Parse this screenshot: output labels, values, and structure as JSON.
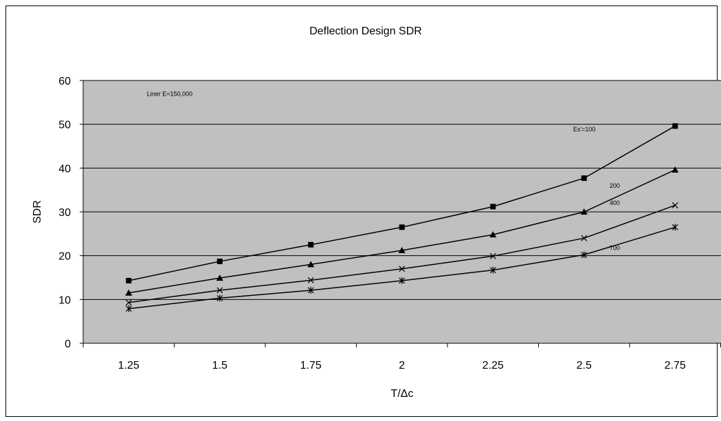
{
  "chart_data": {
    "type": "line",
    "title": "Deflection Design SDR",
    "xlabel": "T/Δc",
    "ylabel": "SDR",
    "categories": [
      "1.25",
      "1.5",
      "1.75",
      "2",
      "2.25",
      "2.5",
      "2.75"
    ],
    "ylim": [
      0,
      60
    ],
    "yticks": [
      0,
      10,
      20,
      30,
      40,
      50,
      60
    ],
    "grid": "horizontal",
    "plot_background": "#c0c0c0",
    "annotations": [
      {
        "text": "Liner E=150,000",
        "x": 1.3,
        "y": 56.5
      },
      {
        "text": "Es'=100",
        "x": 2.47,
        "y": 48.4
      },
      {
        "text": "200",
        "x": 2.57,
        "y": 35.5
      },
      {
        "text": "400",
        "x": 2.57,
        "y": 31.6
      },
      {
        "text": "700",
        "x": 2.57,
        "y": 21.3
      }
    ],
    "series": [
      {
        "marker": "square",
        "values": [
          14.3,
          18.7,
          22.5,
          26.5,
          31.2,
          37.7,
          49.6
        ]
      },
      {
        "marker": "triangle",
        "values": [
          11.5,
          14.9,
          18.0,
          21.2,
          24.8,
          30.0,
          39.6
        ]
      },
      {
        "marker": "x",
        "values": [
          9.3,
          12.1,
          14.4,
          17.0,
          19.9,
          24.0,
          31.5
        ]
      },
      {
        "marker": "asterisk",
        "values": [
          7.9,
          10.3,
          12.1,
          14.3,
          16.7,
          20.2,
          26.5
        ]
      }
    ]
  }
}
